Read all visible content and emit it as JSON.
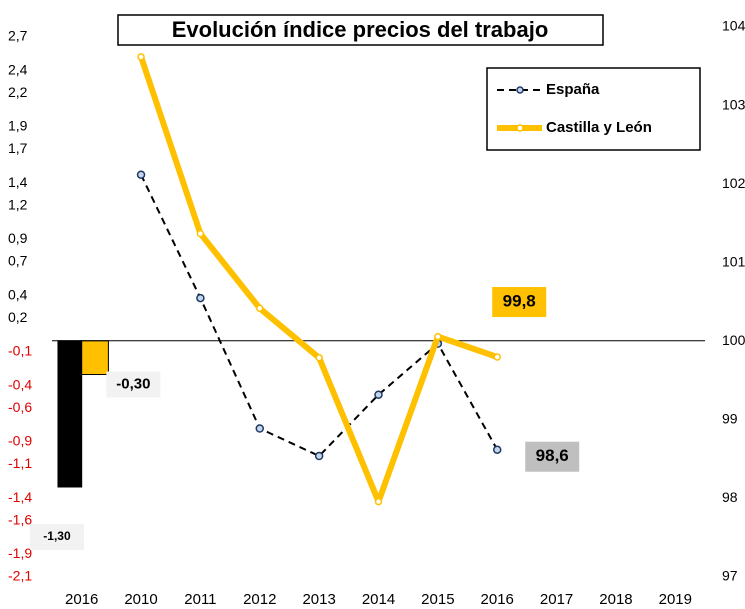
{
  "chart_data": {
    "type": "combo",
    "title": "Evolución índice precios del trabajo",
    "categories": [
      "2016",
      "2010",
      "2011",
      "2012",
      "2013",
      "2014",
      "2015",
      "2016",
      "2017",
      "2018",
      "2019"
    ],
    "ylim": [
      -2.1,
      2.7
    ],
    "yticks": [
      {
        "value": 2.7,
        "label": "2,7"
      },
      {
        "value": 2.4,
        "label": "2,4"
      },
      {
        "value": 2.2,
        "label": "2,2"
      },
      {
        "value": 1.9,
        "label": "1,9"
      },
      {
        "value": 1.7,
        "label": "1,7"
      },
      {
        "value": 1.4,
        "label": "1,4"
      },
      {
        "value": 1.2,
        "label": "1,2"
      },
      {
        "value": 0.9,
        "label": "0,9"
      },
      {
        "value": 0.7,
        "label": "0,7"
      },
      {
        "value": 0.4,
        "label": "0,4"
      },
      {
        "value": 0.2,
        "label": "0,2"
      },
      {
        "value": -0.1,
        "label": "-0,1"
      },
      {
        "value": -0.4,
        "label": "-0,4"
      },
      {
        "value": -0.6,
        "label": "-0,6"
      },
      {
        "value": -0.9,
        "label": "-0,9"
      },
      {
        "value": -1.1,
        "label": "-1,1"
      },
      {
        "value": -1.4,
        "label": "-1,4"
      },
      {
        "value": -1.6,
        "label": "-1,6"
      },
      {
        "value": -1.9,
        "label": "-1,9"
      },
      {
        "value": -2.1,
        "label": "-2,1"
      }
    ],
    "y2lim": [
      97,
      104
    ],
    "y2ticks": [
      97,
      98,
      99,
      100,
      101,
      102,
      103,
      104
    ],
    "legend": "upper right",
    "bars": [
      {
        "color": "#000000",
        "values": [
          -1.3,
          null,
          null,
          null,
          null,
          null,
          null,
          null,
          null,
          null,
          null
        ],
        "value_labels": [
          "-1,30",
          null,
          null,
          null,
          null,
          null,
          null,
          null,
          null,
          null,
          null
        ]
      },
      {
        "color": "#ffc000",
        "values": [
          -0.3,
          null,
          null,
          null,
          null,
          null,
          null,
          null,
          null,
          null,
          null
        ],
        "value_labels": [
          "-0,30",
          null,
          null,
          null,
          null,
          null,
          null,
          null,
          null,
          null,
          null
        ]
      }
    ],
    "series": [
      {
        "name": "España",
        "color": "#000000",
        "axis": "y2",
        "dashed": true,
        "values": [
          null,
          102.12,
          100.55,
          98.89,
          98.54,
          99.32,
          99.97,
          98.62,
          null,
          null,
          null
        ],
        "value_labels": [
          null,
          null,
          null,
          null,
          null,
          null,
          null,
          "98,6",
          null,
          null,
          null
        ]
      },
      {
        "name": "Castilla y León",
        "color": "#ffc000",
        "axis": "y2",
        "dashed": false,
        "values": [
          null,
          103.62,
          101.37,
          100.42,
          99.79,
          97.96,
          100.06,
          99.8,
          null,
          null,
          null
        ],
        "value_labels": [
          null,
          null,
          null,
          null,
          null,
          null,
          null,
          "99,8",
          null,
          null,
          null
        ]
      }
    ]
  }
}
